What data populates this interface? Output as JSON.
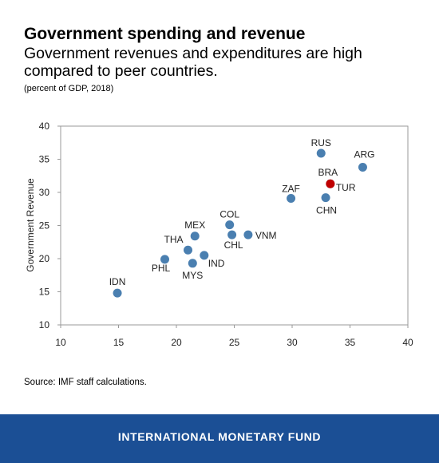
{
  "title": "Government spending and revenue",
  "subtitle": "Government revenues and expenditures are high compared to peer countries.",
  "units_note": "(percent of GDP, 2018)",
  "source": "Source: IMF staff calculations.",
  "footer": "INTERNATIONAL MONETARY FUND",
  "colors": {
    "point": "#4a7fb0",
    "highlight": "#c00000",
    "footer_bg": "#1b4f95"
  },
  "chart_data": {
    "type": "scatter",
    "title": "Government spending and revenue",
    "xlabel": "",
    "ylabel": "Government Revenue",
    "xlim": [
      10,
      40
    ],
    "ylim": [
      10,
      40
    ],
    "xticks": [
      10,
      15,
      20,
      25,
      30,
      35,
      40
    ],
    "yticks": [
      10,
      15,
      20,
      25,
      30,
      35,
      40
    ],
    "grid": false,
    "points": [
      {
        "label": "IDN",
        "x": 14.9,
        "y": 14.8
      },
      {
        "label": "PHL",
        "x": 19.0,
        "y": 19.9
      },
      {
        "label": "THA",
        "x": 21.0,
        "y": 21.3
      },
      {
        "label": "MYS",
        "x": 21.4,
        "y": 19.3
      },
      {
        "label": "MEX",
        "x": 21.6,
        "y": 23.4
      },
      {
        "label": "IND",
        "x": 22.4,
        "y": 20.5
      },
      {
        "label": "COL",
        "x": 24.6,
        "y": 25.1
      },
      {
        "label": "CHL",
        "x": 24.8,
        "y": 23.6
      },
      {
        "label": "VNM",
        "x": 26.2,
        "y": 23.6
      },
      {
        "label": "ZAF",
        "x": 29.9,
        "y": 29.1
      },
      {
        "label": "RUS",
        "x": 32.5,
        "y": 35.9
      },
      {
        "label": "BRA",
        "x": 33.3,
        "y": 31.3,
        "highlight": true
      },
      {
        "label": "TUR",
        "x": 33.3,
        "y": 31.3
      },
      {
        "label": "CHN",
        "x": 32.9,
        "y": 29.2
      },
      {
        "label": "ARG",
        "x": 36.1,
        "y": 33.8
      }
    ]
  }
}
